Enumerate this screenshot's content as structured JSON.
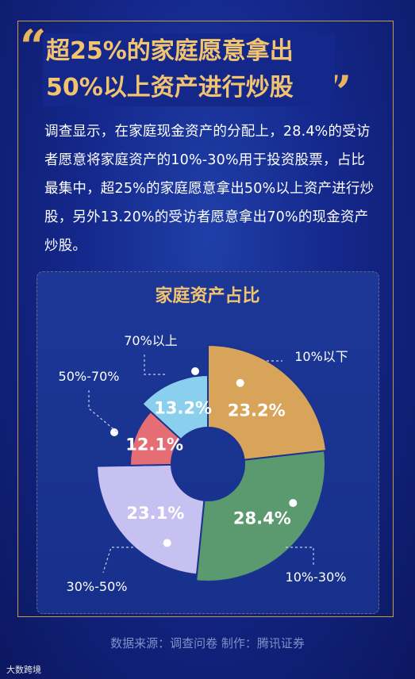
{
  "title_lines": [
    "超25%的家庭愿意拿出",
    "50%以上资产进行炒股"
  ],
  "body_text": "调查显示，在家庭现金资产的分配上，28.4%的受访者愿意将家庭资产的10%-30%用于投资股票，占比最集中，超25%的家庭愿意拿出50%以上资产进行炒股，另外13.20%的受访者愿意拿出70%的现金资产炒股。",
  "source_text": "数据来源：调查问卷  制作：腾讯证券",
  "watermark_text": "大数跨境",
  "colors": {
    "accent": "#f2c46f",
    "frame": "#c79b45",
    "background": "#14278a"
  },
  "chart_data": {
    "type": "pie",
    "title": "家庭资产占比",
    "categories": [
      "10%以下",
      "10%-30%",
      "30%-50%",
      "50%-70%",
      "70%以上"
    ],
    "values": [
      23.2,
      28.4,
      23.1,
      12.1,
      13.2
    ],
    "value_labels": [
      "23.2%",
      "28.4%",
      "23.1%",
      "12.1%",
      "13.2%"
    ],
    "colors": [
      "#d8a45a",
      "#5a9a6e",
      "#c7c1f2",
      "#e56e74",
      "#8ad0ee"
    ]
  }
}
